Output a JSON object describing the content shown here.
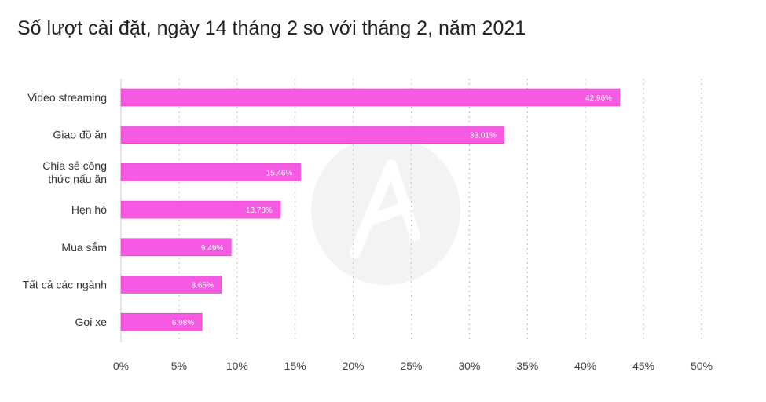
{
  "chart_data": {
    "type": "bar",
    "orientation": "horizontal",
    "title": "Số lượt cài đặt, ngày 14 tháng 2 so với tháng 2, năm 2021",
    "categories": [
      [
        "Video streaming"
      ],
      [
        "Giao đồ ăn"
      ],
      [
        "Chia sẻ công",
        "thức nấu ăn"
      ],
      [
        "Hẹn hò"
      ],
      [
        "Mua sắm"
      ],
      [
        "Tất cả các ngành"
      ],
      [
        "Gọi xe"
      ]
    ],
    "values": [
      42.96,
      33.01,
      15.46,
      13.73,
      9.49,
      8.65,
      6.98
    ],
    "value_labels": [
      "42.96%",
      "33.01%",
      "15.46%",
      "13.73%",
      "9.49%",
      "8.65%",
      "6.98%"
    ],
    "x_ticks": [
      0,
      5,
      10,
      15,
      20,
      25,
      30,
      35,
      40,
      45,
      50
    ],
    "x_tick_labels": [
      "0%",
      "5%",
      "10%",
      "15%",
      "20%",
      "25%",
      "30%",
      "35%",
      "40%",
      "45%",
      "50%"
    ],
    "xlim": [
      0,
      50
    ],
    "xlabel": "",
    "ylabel": "",
    "grid": "vertical dotted",
    "colors": {
      "bar": "#f75ae2",
      "bar_stroke": "#e43ccd",
      "grid": "#c9c9c9",
      "axis": "#cfcfcf",
      "watermark": "#f3f3f3"
    }
  }
}
